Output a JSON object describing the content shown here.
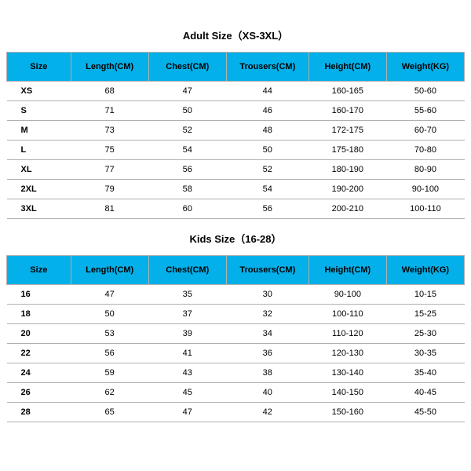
{
  "adult": {
    "title": "Adult Size（XS-3XL）",
    "columns": [
      "Size",
      "Length(CM)",
      "Chest(CM)",
      "Trousers(CM)",
      "Height(CM)",
      "Weight(KG)"
    ],
    "rows": [
      [
        "XS",
        "68",
        "47",
        "44",
        "160-165",
        "50-60"
      ],
      [
        "S",
        "71",
        "50",
        "46",
        "160-170",
        "55-60"
      ],
      [
        "M",
        "73",
        "52",
        "48",
        "172-175",
        "60-70"
      ],
      [
        "L",
        "75",
        "54",
        "50",
        "175-180",
        "70-80"
      ],
      [
        "XL",
        "77",
        "56",
        "52",
        "180-190",
        "80-90"
      ],
      [
        "2XL",
        "79",
        "58",
        "54",
        "190-200",
        "90-100"
      ],
      [
        "3XL",
        "81",
        "60",
        "56",
        "200-210",
        "100-110"
      ]
    ]
  },
  "kids": {
    "title": "Kids Size（16-28）",
    "columns": [
      "Size",
      "Length(CM)",
      "Chest(CM)",
      "Trousers(CM)",
      "Height(CM)",
      "Weight(KG)"
    ],
    "rows": [
      [
        "16",
        "47",
        "35",
        "30",
        "90-100",
        "10-15"
      ],
      [
        "18",
        "50",
        "37",
        "32",
        "100-110",
        "15-25"
      ],
      [
        "20",
        "53",
        "39",
        "34",
        "110-120",
        "25-30"
      ],
      [
        "22",
        "56",
        "41",
        "36",
        "120-130",
        "30-35"
      ],
      [
        "24",
        "59",
        "43",
        "38",
        "130-140",
        "35-40"
      ],
      [
        "26",
        "62",
        "45",
        "40",
        "140-150",
        "40-45"
      ],
      [
        "28",
        "65",
        "47",
        "42",
        "150-160",
        "45-50"
      ]
    ]
  },
  "styling": {
    "header_bg": "#04b0e9",
    "border_color": "#b0b0b0",
    "title_fontsize": 13,
    "header_fontsize": 11,
    "cell_fontsize": 11,
    "col_widths_pct": [
      14,
      17,
      17,
      18,
      17,
      17
    ]
  }
}
